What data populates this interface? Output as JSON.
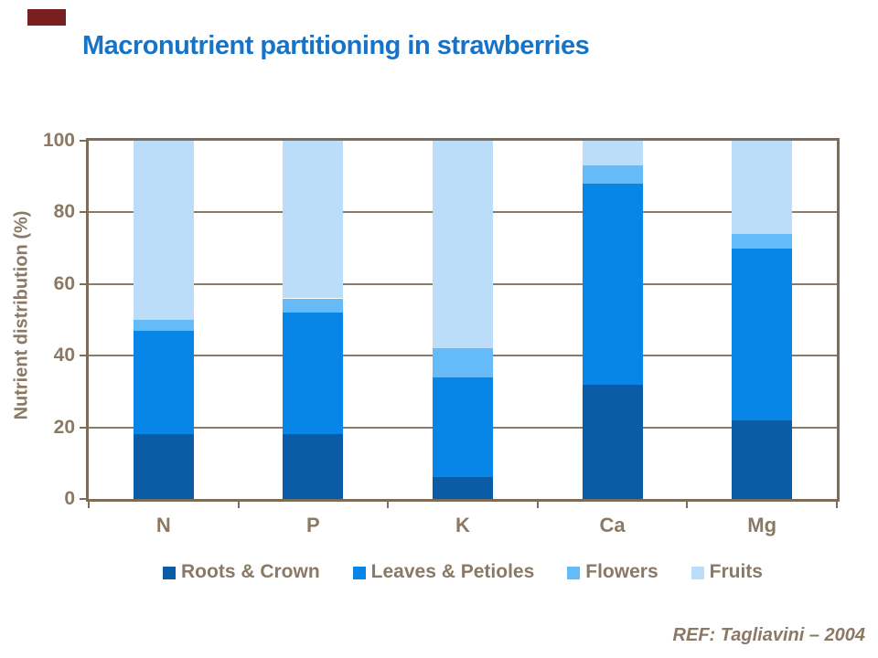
{
  "slide": {
    "accent_color": "#7A1F1F",
    "title_color": "#1773C6",
    "reference": "REF: Tagliavini – 2004"
  },
  "chart_data": {
    "type": "bar",
    "stacked": true,
    "title": "Macronutrient partitioning in strawberries",
    "ylabel": "Nutrient distribution (%)",
    "xlabel": "",
    "ylim": [
      0,
      100
    ],
    "yticks": [
      0,
      20,
      40,
      60,
      80,
      100
    ],
    "grid": true,
    "legend_position": "bottom",
    "axis_color": "#7D6D58",
    "tick_text_color": "#8A7965",
    "categories": [
      "N",
      "P",
      "K",
      "Ca",
      "Mg"
    ],
    "series": [
      {
        "name": "Roots & Crown",
        "color": "#0B5CA6",
        "values": [
          18,
          18,
          6,
          32,
          22
        ]
      },
      {
        "name": "Leaves & Petioles",
        "color": "#0886E8",
        "values": [
          29,
          34,
          28,
          56,
          48
        ]
      },
      {
        "name": "Flowers",
        "color": "#65BAF8",
        "values": [
          3,
          4,
          8,
          5,
          4
        ]
      },
      {
        "name": "Fruits",
        "color": "#BBDDF9",
        "values": [
          50,
          44,
          58,
          7,
          26
        ]
      }
    ]
  }
}
